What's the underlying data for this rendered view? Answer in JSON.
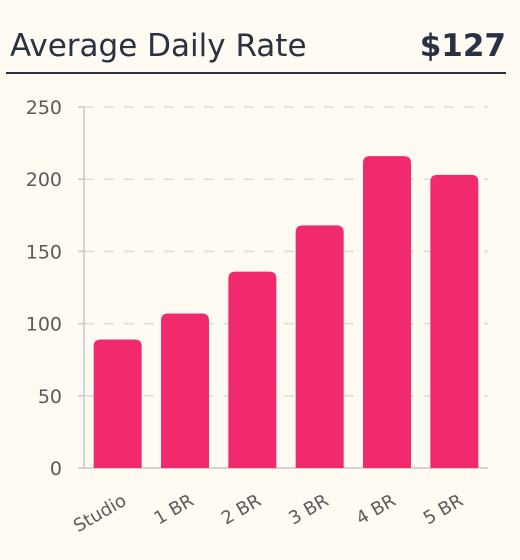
{
  "header": {
    "title": "Average Daily Rate",
    "value": "$127"
  },
  "chart_data": {
    "type": "bar",
    "categories": [
      "Studio",
      "1 BR",
      "2 BR",
      "3 BR",
      "4 BR",
      "5 BR"
    ],
    "values": [
      89,
      107,
      136,
      168,
      216,
      203
    ],
    "ylim": [
      0,
      250
    ],
    "yticks": [
      0,
      50,
      100,
      150,
      200,
      250
    ],
    "grid": true,
    "bar_color": "#f02a6c",
    "grid_color": "#dcdcdc",
    "axis_color": "#c8c8c8"
  }
}
